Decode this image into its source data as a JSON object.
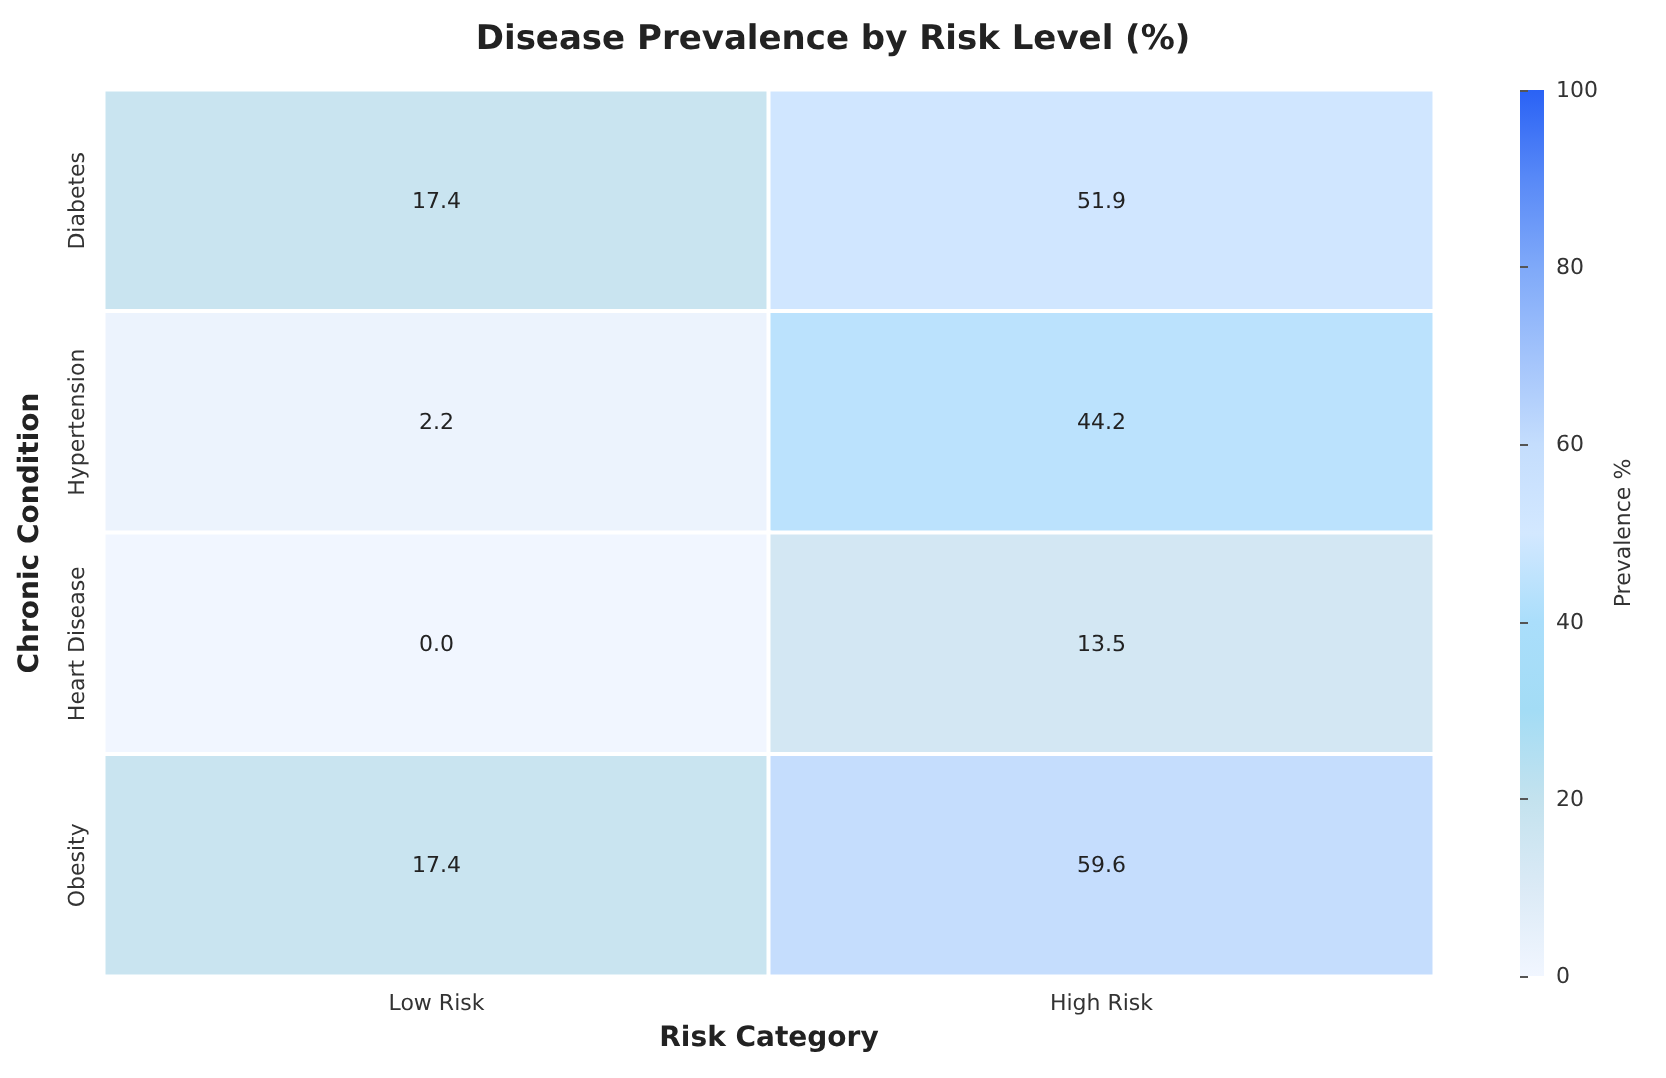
{
  "chart_data": {
    "type": "heatmap",
    "title": "Disease Prevalence by Risk Level (%)",
    "xlabel": "Risk Category",
    "ylabel": "Chronic Condition",
    "clabel": "Prevalence %",
    "categories": [
      "Low Risk",
      "High Risk"
    ],
    "y_categories": [
      "Diabetes",
      "Hypertension",
      "Heart Disease",
      "Obesity"
    ],
    "cells": [
      [
        17.4,
        51.9
      ],
      [
        2.2,
        44.2
      ],
      [
        0.0,
        13.5
      ],
      [
        17.4,
        59.6
      ]
    ],
    "cell_labels": [
      [
        "17.4",
        "51.9"
      ],
      [
        "2.2",
        "44.2"
      ],
      [
        "0.0",
        "13.5"
      ],
      [
        "17.4",
        "59.6"
      ]
    ],
    "clim": [
      0,
      100
    ],
    "cticks": [
      0,
      20,
      40,
      60,
      80,
      100
    ],
    "data_labels": true
  }
}
